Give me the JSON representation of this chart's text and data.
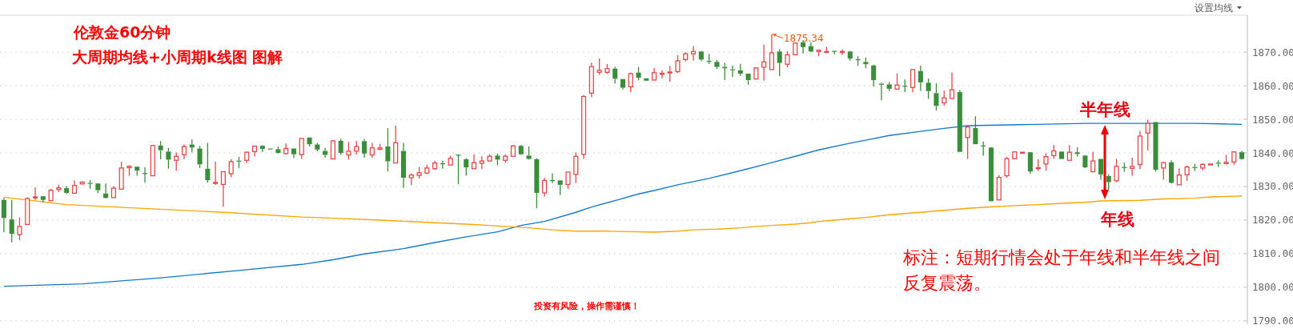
{
  "chart_data": {
    "type": "candlestick",
    "title": "伦敦金60分钟",
    "subtitle": "大周期均线+小周期k线图 图解",
    "annotations": [
      "设置均线",
      "1875.34",
      "标注：短期行情会处于年线和半年线之间反复震荡。",
      "投资有风险，操作需谨慎！"
    ],
    "categories": [
      null,
      null,
      null,
      null,
      null,
      null,
      null,
      null,
      null,
      null,
      null,
      null,
      null,
      null,
      null,
      null,
      null,
      null,
      null,
      null,
      null,
      null,
      null,
      null,
      null,
      null,
      null,
      null,
      null,
      null,
      null,
      null,
      null,
      null,
      null,
      null,
      null,
      null,
      null,
      null,
      null,
      null,
      null,
      null,
      null,
      null,
      null,
      null,
      null,
      null,
      null,
      null,
      null,
      null,
      null,
      null,
      null,
      null,
      null,
      null,
      null,
      null,
      null,
      null,
      null,
      null,
      null,
      null,
      null,
      null,
      null,
      null,
      null,
      null,
      null,
      null,
      null,
      null,
      null,
      null,
      null,
      null,
      null,
      null,
      null,
      null,
      null,
      null,
      null,
      null,
      null,
      null,
      null,
      null,
      null,
      null,
      null,
      null,
      null,
      null,
      null,
      null,
      null,
      null,
      null,
      null,
      null,
      null,
      null,
      null,
      null,
      null,
      null,
      null,
      null,
      null,
      null,
      null,
      null,
      null,
      null,
      null,
      null,
      null,
      null,
      null,
      null,
      null,
      null,
      null,
      null,
      null,
      null,
      null,
      null,
      null,
      null,
      null,
      null,
      null,
      null,
      null,
      null,
      null,
      null,
      null,
      null,
      null,
      null,
      null,
      null,
      null,
      null,
      null,
      null,
      null,
      null,
      null,
      null
    ],
    "ohlc": [
      [
        1826.0,
        1826.6,
        1816.4,
        1820.6
      ],
      [
        1820.2,
        1826.0,
        1813.4,
        1815.9
      ],
      [
        1815.7,
        1820.8,
        1814.0,
        1818.1
      ],
      [
        1818.7,
        1826.8,
        1818.7,
        1826.4
      ],
      [
        1826.6,
        1829.7,
        1826.0,
        1826.9
      ],
      [
        1827.1,
        1827.1,
        1825.2,
        1826.0
      ],
      [
        1825.8,
        1829.3,
        1825.7,
        1828.9
      ],
      [
        1829.1,
        1830.5,
        1828.3,
        1829.6
      ],
      [
        1829.5,
        1830.1,
        1827.8,
        1828.1
      ],
      [
        1828.0,
        1831.8,
        1828.0,
        1830.3
      ],
      [
        1830.8,
        1831.6,
        1830.6,
        1831.3
      ],
      [
        1831.1,
        1831.9,
        1829.3,
        1830.9
      ],
      [
        1830.9,
        1830.9,
        1828.0,
        1828.9
      ],
      [
        1827.9,
        1830.9,
        1826.4,
        1826.6
      ],
      [
        1826.7,
        1830.1,
        1826.7,
        1829.5
      ],
      [
        1829.2,
        1837.4,
        1829.2,
        1835.5
      ],
      [
        1835.6,
        1836.3,
        1833.2,
        1836.0
      ],
      [
        1835.9,
        1835.9,
        1833.2,
        1834.7
      ],
      [
        1834.0,
        1835.7,
        1831.1,
        1833.9
      ],
      [
        1833.2,
        1842.3,
        1833.2,
        1842.2
      ],
      [
        1842.2,
        1843.5,
        1838.1,
        1840.8
      ],
      [
        1840.4,
        1841.5,
        1835.3,
        1838.0
      ],
      [
        1837.8,
        1840.2,
        1834.7,
        1839.0
      ],
      [
        1839.5,
        1842.5,
        1838.1,
        1841.9
      ],
      [
        1842.5,
        1844.0,
        1840.2,
        1841.6
      ],
      [
        1841.3,
        1842.1,
        1835.5,
        1836.6
      ],
      [
        1835.3,
        1843.0,
        1831.2,
        1831.9
      ],
      [
        1831.1,
        1837.4,
        1830.5,
        1831.2
      ],
      [
        1830.6,
        1834.4,
        1824.0,
        1834.4
      ],
      [
        1833.8,
        1838.1,
        1832.8,
        1837.4
      ],
      [
        1837.7,
        1838.8,
        1835.5,
        1837.5
      ],
      [
        1837.8,
        1840.4,
        1837.0,
        1840.2
      ],
      [
        1840.4,
        1842.2,
        1839.0,
        1842.0
      ],
      [
        1842.1,
        1842.3,
        1840.3,
        1841.2
      ],
      [
        1841.3,
        1841.3,
        1841.2,
        1841.2
      ],
      [
        1841.1,
        1841.9,
        1839.8,
        1840.0
      ],
      [
        1839.8,
        1842.8,
        1839.5,
        1841.3
      ],
      [
        1841.3,
        1841.3,
        1838.5,
        1839.6
      ],
      [
        1839.5,
        1844.3,
        1838.2,
        1844.3
      ],
      [
        1844.6,
        1844.6,
        1841.9,
        1842.6
      ],
      [
        1842.5,
        1843.0,
        1840.5,
        1841.0
      ],
      [
        1840.6,
        1841.5,
        1838.6,
        1839.4
      ],
      [
        1838.2,
        1843.9,
        1838.2,
        1843.6
      ],
      [
        1843.6,
        1844.2,
        1839.5,
        1840.0
      ],
      [
        1839.4,
        1843.3,
        1838.0,
        1840.5
      ],
      [
        1840.5,
        1843.6,
        1839.5,
        1841.9
      ],
      [
        1843.5,
        1844.2,
        1838.6,
        1839.8
      ],
      [
        1839.4,
        1843.0,
        1838.6,
        1841.5
      ],
      [
        1841.1,
        1842.7,
        1840.8,
        1841.5
      ],
      [
        1841.9,
        1847.4,
        1834.5,
        1837.5
      ],
      [
        1837.0,
        1848.1,
        1837.0,
        1843.0
      ],
      [
        1840.6,
        1843.0,
        1829.6,
        1832.6
      ],
      [
        1832.6,
        1833.9,
        1830.5,
        1833.4
      ],
      [
        1833.3,
        1835.8,
        1832.4,
        1834.1
      ],
      [
        1834.0,
        1836.5,
        1833.7,
        1835.5
      ],
      [
        1835.3,
        1837.7,
        1835.0,
        1837.0
      ],
      [
        1836.9,
        1837.7,
        1835.3,
        1836.8
      ],
      [
        1836.4,
        1839.2,
        1836.4,
        1838.4
      ],
      [
        1839.5,
        1839.5,
        1830.7,
        1839.4
      ],
      [
        1838.1,
        1838.4,
        1833.3,
        1835.7
      ],
      [
        1835.3,
        1839.5,
        1835.3,
        1837.1
      ],
      [
        1836.9,
        1839.0,
        1835.2,
        1837.6
      ],
      [
        1837.6,
        1839.5,
        1837.6,
        1839.0
      ],
      [
        1839.2,
        1839.8,
        1836.3,
        1838.0
      ],
      [
        1837.8,
        1839.5,
        1837.1,
        1839.0
      ],
      [
        1839.0,
        1842.3,
        1839.0,
        1842.1
      ],
      [
        1842.1,
        1842.3,
        1839.4,
        1839.6
      ],
      [
        1839.2,
        1841.9,
        1838.0,
        1838.2
      ],
      [
        1838.1,
        1838.4,
        1823.5,
        1828.1
      ],
      [
        1828.1,
        1832.6,
        1827.0,
        1831.8
      ],
      [
        1831.9,
        1833.9,
        1831.0,
        1831.7
      ],
      [
        1831.8,
        1831.8,
        1827.5,
        1830.5
      ],
      [
        1830.6,
        1834.3,
        1829.3,
        1834.3
      ],
      [
        1833.6,
        1840.2,
        1831.0,
        1839.0
      ],
      [
        1839.6,
        1857.2,
        1838.2,
        1856.8
      ],
      [
        1857.8,
        1866.9,
        1856.6,
        1865.7
      ],
      [
        1864.0,
        1868.1,
        1863.3,
        1864.6
      ],
      [
        1864.0,
        1866.5,
        1863.6,
        1865.1
      ],
      [
        1865.1,
        1865.6,
        1860.7,
        1862.1
      ],
      [
        1862.0,
        1862.0,
        1858.9,
        1859.4
      ],
      [
        1859.7,
        1863.9,
        1858.1,
        1863.6
      ],
      [
        1863.9,
        1865.6,
        1861.6,
        1862.4
      ],
      [
        1862.2,
        1862.2,
        1861.5,
        1861.5
      ],
      [
        1861.7,
        1865.3,
        1861.7,
        1863.9
      ],
      [
        1863.6,
        1864.6,
        1862.2,
        1863.7
      ],
      [
        1863.8,
        1865.9,
        1861.2,
        1864.1
      ],
      [
        1864.2,
        1869.1,
        1863.8,
        1867.4
      ],
      [
        1867.8,
        1870.0,
        1867.3,
        1869.5
      ],
      [
        1869.5,
        1871.8,
        1867.5,
        1870.2
      ],
      [
        1870.2,
        1870.4,
        1867.3,
        1867.8
      ],
      [
        1867.4,
        1869.5,
        1866.5,
        1867.1
      ],
      [
        1867.1,
        1867.7,
        1865.0,
        1865.6
      ],
      [
        1865.6,
        1866.9,
        1861.7,
        1865.2
      ],
      [
        1864.9,
        1866.0,
        1862.6,
        1864.7
      ],
      [
        1864.6,
        1866.5,
        1862.9,
        1863.6
      ],
      [
        1863.6,
        1863.6,
        1860.3,
        1861.7
      ],
      [
        1862.0,
        1865.5,
        1862.0,
        1865.3
      ],
      [
        1865.5,
        1872.3,
        1861.5,
        1867.1
      ],
      [
        1864.8,
        1875.34,
        1864.8,
        1869.8
      ],
      [
        1870.2,
        1870.9,
        1862.9,
        1866.8
      ],
      [
        1866.4,
        1870.2,
        1865.5,
        1869.2
      ],
      [
        1869.2,
        1872.9,
        1869.2,
        1872.7
      ],
      [
        1872.9,
        1873.5,
        1869.6,
        1871.5
      ],
      [
        1871.8,
        1872.9,
        1870.0,
        1870.2
      ],
      [
        1870.2,
        1870.6,
        1868.8,
        1870.6
      ],
      [
        1870.1,
        1871.6,
        1869.8,
        1870.2
      ],
      [
        1870.4,
        1870.4,
        1869.4,
        1870.2
      ],
      [
        1870.0,
        1870.8,
        1869.2,
        1870.2
      ],
      [
        1870.2,
        1870.4,
        1867.5,
        1868.1
      ],
      [
        1867.9,
        1868.8,
        1865.9,
        1867.7
      ],
      [
        1867.1,
        1868.4,
        1865.2,
        1866.4
      ],
      [
        1866.0,
        1866.3,
        1859.8,
        1861.7
      ],
      [
        1860.6,
        1860.9,
        1855.7,
        1860.3
      ],
      [
        1860.4,
        1861.1,
        1858.4,
        1859.1
      ],
      [
        1859.0,
        1863.7,
        1859.0,
        1860.2
      ],
      [
        1860.0,
        1861.9,
        1858.1,
        1859.8
      ],
      [
        1859.5,
        1864.8,
        1858.0,
        1864.8
      ],
      [
        1864.4,
        1866.0,
        1858.5,
        1861.0
      ],
      [
        1860.9,
        1862.1,
        1856.1,
        1858.4
      ],
      [
        1857.8,
        1860.7,
        1852.6,
        1854.0
      ],
      [
        1854.9,
        1858.6,
        1854.0,
        1856.4
      ],
      [
        1856.2,
        1863.9,
        1856.2,
        1858.8
      ],
      [
        1858.1,
        1858.8,
        1840.3,
        1840.3
      ],
      [
        1844.6,
        1848.1,
        1838.2,
        1847.7
      ],
      [
        1847.4,
        1850.9,
        1842.6,
        1842.6
      ],
      [
        1842.2,
        1843.4,
        1839.2,
        1842.0
      ],
      [
        1841.6,
        1841.8,
        1825.6,
        1825.6
      ],
      [
        1826.0,
        1833.4,
        1826.0,
        1832.7
      ],
      [
        1833.2,
        1838.8,
        1832.6,
        1838.3
      ],
      [
        1838.3,
        1840.3,
        1838.3,
        1840.3
      ],
      [
        1840.0,
        1840.2,
        1840.0,
        1840.2
      ],
      [
        1840.2,
        1840.2,
        1833.8,
        1834.5
      ],
      [
        1835.5,
        1838.1,
        1834.7,
        1835.6
      ],
      [
        1836.7,
        1839.9,
        1834.7,
        1838.9
      ],
      [
        1839.2,
        1842.3,
        1838.2,
        1840.6
      ],
      [
        1840.4,
        1840.4,
        1838.2,
        1838.2
      ],
      [
        1837.8,
        1842.3,
        1837.8,
        1840.2
      ],
      [
        1840.2,
        1841.7,
        1838.9,
        1839.7
      ],
      [
        1839.2,
        1839.4,
        1835.5,
        1835.7
      ],
      [
        1834.4,
        1840.3,
        1834.4,
        1837.6
      ],
      [
        1838.2,
        1838.2,
        1832.0,
        1833.6
      ],
      [
        1833.1,
        1833.6,
        1829.0,
        1831.3
      ],
      [
        1831.7,
        1838.2,
        1831.3,
        1836.0
      ],
      [
        1835.8,
        1837.1,
        1834.4,
        1835.5
      ],
      [
        1835.4,
        1838.6,
        1833.2,
        1836.0
      ],
      [
        1836.5,
        1846.5,
        1835.2,
        1845.0
      ],
      [
        1845.9,
        1849.9,
        1840.8,
        1848.8
      ],
      [
        1849.2,
        1849.2,
        1834.4,
        1835.0
      ],
      [
        1835.5,
        1837.3,
        1832.0,
        1837.1
      ],
      [
        1837.2,
        1837.8,
        1830.9,
        1831.1
      ],
      [
        1830.5,
        1835.4,
        1830.5,
        1833.4
      ],
      [
        1833.5,
        1836.2,
        1831.7,
        1835.8
      ],
      [
        1835.8,
        1836.8,
        1834.6,
        1835.5
      ],
      [
        1835.5,
        1836.9,
        1834.8,
        1836.6
      ],
      [
        1836.5,
        1836.7,
        1836.5,
        1836.7
      ],
      [
        1837.1,
        1837.8,
        1835.8,
        1836.8
      ],
      [
        1836.8,
        1839.4,
        1836.6,
        1837.2
      ],
      [
        1837.3,
        1840.5,
        1836.5,
        1840.3
      ],
      [
        1840.2,
        1840.6,
        1838.0,
        1838.2
      ]
    ],
    "colors": [
      "#3a8e3a",
      "#3a8e3a",
      "#e8474a",
      "#e8474a",
      "#e8474a",
      "#3a8e3a",
      "#e8474a",
      "#e8474a",
      "#3a8e3a",
      "#e8474a",
      "#e8474a",
      "#3a8e3a",
      "#3a8e3a",
      "#3a8e3a",
      "#e8474a",
      "#e8474a",
      "#e8474a",
      "#3a8e3a",
      "#3a8e3a",
      "#e8474a",
      "#3a8e3a",
      "#3a8e3a",
      "#e8474a",
      "#e8474a",
      "#3a8e3a",
      "#3a8e3a",
      "#3a8e3a",
      "#e8474a",
      "#e8474a",
      "#e8474a",
      "#3a8e3a",
      "#e8474a",
      "#e8474a",
      "#3a8e3a",
      "#3a8e3a",
      "#3a8e3a",
      "#e8474a",
      "#3a8e3a",
      "#e8474a",
      "#3a8e3a",
      "#3a8e3a",
      "#3a8e3a",
      "#e8474a",
      "#3a8e3a",
      "#e8474a",
      "#e8474a",
      "#3a8e3a",
      "#e8474a",
      "#e8474a",
      "#3a8e3a",
      "#e8474a",
      "#3a8e3a",
      "#e8474a",
      "#e8474a",
      "#e8474a",
      "#e8474a",
      "#3a8e3a",
      "#e8474a",
      "#3a8e3a",
      "#3a8e3a",
      "#e8474a",
      "#e8474a",
      "#e8474a",
      "#3a8e3a",
      "#e8474a",
      "#e8474a",
      "#3a8e3a",
      "#3a8e3a",
      "#3a8e3a",
      "#e8474a",
      "#3a8e3a",
      "#3a8e3a",
      "#e8474a",
      "#e8474a",
      "#e8474a",
      "#e8474a",
      "#e8474a",
      "#e8474a",
      "#3a8e3a",
      "#3a8e3a",
      "#e8474a",
      "#3a8e3a",
      "#3a8e3a",
      "#e8474a",
      "#e8474a",
      "#e8474a",
      "#e8474a",
      "#e8474a",
      "#e8474a",
      "#3a8e3a",
      "#3a8e3a",
      "#3a8e3a",
      "#3a8e3a",
      "#3a8e3a",
      "#3a8e3a",
      "#3a8e3a",
      "#e8474a",
      "#e8474a",
      "#e8474a",
      "#3a8e3a",
      "#e8474a",
      "#e8474a",
      "#3a8e3a",
      "#3a8e3a",
      "#e8474a",
      "#e8474a",
      "#3a8e3a",
      "#e8474a",
      "#3a8e3a",
      "#3a8e3a",
      "#3a8e3a",
      "#3a8e3a",
      "#3a8e3a",
      "#3a8e3a",
      "#e8474a",
      "#3a8e3a",
      "#e8474a",
      "#3a8e3a",
      "#3a8e3a",
      "#3a8e3a",
      "#e8474a",
      "#e8474a",
      "#3a8e3a",
      "#e8474a",
      "#3a8e3a",
      "#3a8e3a",
      "#3a8e3a",
      "#e8474a",
      "#e8474a",
      "#e8474a",
      "#e8474a",
      "#3a8e3a",
      "#e8474a",
      "#e8474a",
      "#e8474a",
      "#3a8e3a",
      "#e8474a",
      "#3a8e3a",
      "#3a8e3a",
      "#e8474a",
      "#3a8e3a",
      "#3a8e3a",
      "#e8474a",
      "#3a8e3a",
      "#e8474a",
      "#e8474a",
      "#e8474a",
      "#3a8e3a",
      "#e8474a",
      "#3a8e3a",
      "#e8474a",
      "#e8474a",
      "#3a8e3a",
      "#e8474a",
      "#e8474a",
      "#3a8e3a",
      "#e8474a",
      "#e8474a",
      "#3a8e3a"
    ],
    "series": [
      {
        "name": "半年线",
        "type": "line",
        "color": "#1479d2",
        "values": [
          1800.3,
          null,
          null,
          null,
          null,
          null,
          null,
          null,
          null,
          null,
          1801.0,
          null,
          null,
          null,
          null,
          null,
          null,
          null,
          null,
          null,
          1802.8,
          null,
          null,
          null,
          null,
          null,
          null,
          null,
          null,
          null,
          1805.0,
          null,
          null,
          null,
          null,
          null,
          null,
          null,
          1806.8,
          null,
          null,
          null,
          1808.2,
          null,
          null,
          null,
          1809.9,
          null,
          null,
          null,
          null,
          1811.5,
          null,
          null,
          null,
          1813.3,
          null,
          null,
          null,
          1815.0,
          null,
          null,
          null,
          1816.5,
          null,
          null,
          1818.4,
          null,
          null,
          1819.6,
          null,
          null,
          null,
          1822.3,
          null,
          1823.9,
          null,
          null,
          1825.8,
          null,
          null,
          1827.8,
          null,
          1828.8,
          null,
          null,
          1830.5,
          null,
          null,
          null,
          1832.4,
          null,
          null,
          null,
          1834.7,
          null,
          null,
          null,
          1837.1,
          null,
          null,
          1839.0,
          null,
          null,
          1840.9,
          null,
          null,
          null,
          1842.9,
          null,
          1843.8,
          null,
          null,
          1845.2,
          null,
          null,
          null,
          1846.4,
          null,
          null,
          1847.3,
          null,
          null,
          1848.1,
          null,
          null,
          null,
          1848.3,
          null,
          null,
          null,
          null,
          1848.5,
          null,
          null,
          null,
          null,
          null,
          1848.8,
          null,
          null,
          null,
          null,
          null,
          null,
          null,
          null,
          null,
          null,
          null,
          null,
          null,
          1848.8,
          null,
          null,
          null,
          null,
          null,
          1848.5
        ]
      },
      {
        "name": "年线",
        "type": "line",
        "color": "#ffa500",
        "values": [
          1826.8,
          null,
          null,
          null,
          null,
          null,
          null,
          null,
          1824.6,
          null,
          null,
          null,
          null,
          null,
          null,
          null,
          null,
          null,
          null,
          null,
          null,
          null,
          null,
          null,
          null,
          null,
          null,
          null,
          1822.3,
          null,
          null,
          null,
          null,
          null,
          null,
          null,
          null,
          null,
          1820.9,
          null,
          null,
          null,
          null,
          1820.5,
          null,
          null,
          null,
          null,
          1820.0,
          null,
          null,
          null,
          null,
          null,
          null,
          1819.2,
          null,
          null,
          null,
          1818.8,
          null,
          null,
          1818.4,
          null,
          1818.1,
          null,
          null,
          1817.7,
          null,
          null,
          1817.1,
          null,
          null,
          1816.7,
          null,
          null,
          null,
          1816.7,
          null,
          null,
          null,
          null,
          null,
          1816.4,
          null,
          null,
          1816.7,
          null,
          1817.1,
          null,
          null,
          1817.3,
          null,
          null,
          1817.7,
          null,
          1818.1,
          null,
          1818.4,
          null,
          null,
          1818.8,
          null,
          1819.2,
          1819.6,
          null,
          1820.0,
          null,
          1820.4,
          null,
          1820.8,
          null,
          null,
          1821.6,
          null,
          null,
          null,
          1822.3,
          null,
          null,
          1822.9,
          null,
          null,
          1823.5,
          null,
          null,
          1823.9,
          null,
          null,
          1824.3,
          null,
          null,
          1824.6,
          null,
          null,
          1825.0,
          null,
          null,
          1825.3,
          null,
          1825.7,
          null,
          null,
          null,
          null,
          1825.9,
          null,
          null,
          1826.3,
          null,
          null,
          null,
          1826.5,
          null,
          1826.9,
          null,
          null,
          null,
          1827.2
        ]
      }
    ],
    "ylim": [
      1789,
      1881
    ],
    "yticks": [
      {
        "value": 1790,
        "label": "1790.00"
      },
      {
        "value": 1800,
        "label": "1800.00"
      },
      {
        "value": 1810,
        "label": "1810.00"
      },
      {
        "value": 1820,
        "label": "1820.00"
      },
      {
        "value": 1830,
        "label": "1830.00"
      },
      {
        "value": 1840,
        "label": "1840.00"
      },
      {
        "value": 1850,
        "label": "1850.00"
      },
      {
        "value": 1860,
        "label": "1860.00"
      },
      {
        "value": 1870,
        "label": "1870.00"
      }
    ],
    "grid": "y",
    "tick_labels": "y"
  }
}
